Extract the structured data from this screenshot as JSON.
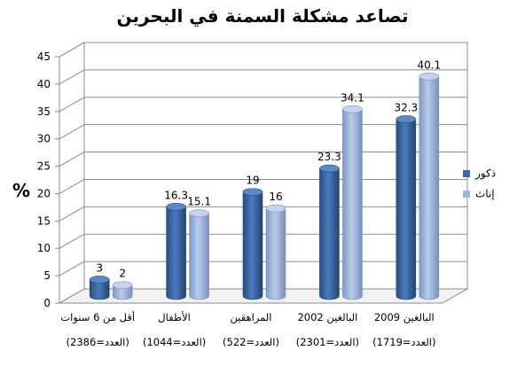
{
  "chart_data": {
    "type": "bar",
    "title": "تصاعد مشكلة السمنة في البحرين",
    "ylabel": "%",
    "xlabel": "",
    "ylim": [
      0,
      45
    ],
    "yticks": [
      "0",
      "5",
      "10",
      "15",
      "20",
      "25",
      "30",
      "35",
      "40",
      "45"
    ],
    "grid": true,
    "legend_position": "right",
    "categories": [
      "أقل من 6 سنوات",
      "الأطفال",
      "المراهقين",
      "البالغين 2002",
      "البالغين 2009"
    ],
    "category_counts": [
      "(العدد=2386)",
      "(العدد=1044)",
      "(العدد=522)",
      "(العدد=2301)",
      "(العدد=1719)"
    ],
    "series": [
      {
        "name": "ذكور",
        "values": [
          3,
          16.3,
          19,
          23.3,
          32.3
        ],
        "labels": [
          "3",
          "16.3",
          "19",
          "23.3",
          "32.3"
        ],
        "color": "#3c6aa6"
      },
      {
        "name": "إناث",
        "values": [
          2,
          15.1,
          16,
          34.1,
          40.1
        ],
        "labels": [
          "2",
          "15.1",
          "16",
          "34.1",
          "40.1"
        ],
        "color": "#9db3dc"
      }
    ]
  }
}
